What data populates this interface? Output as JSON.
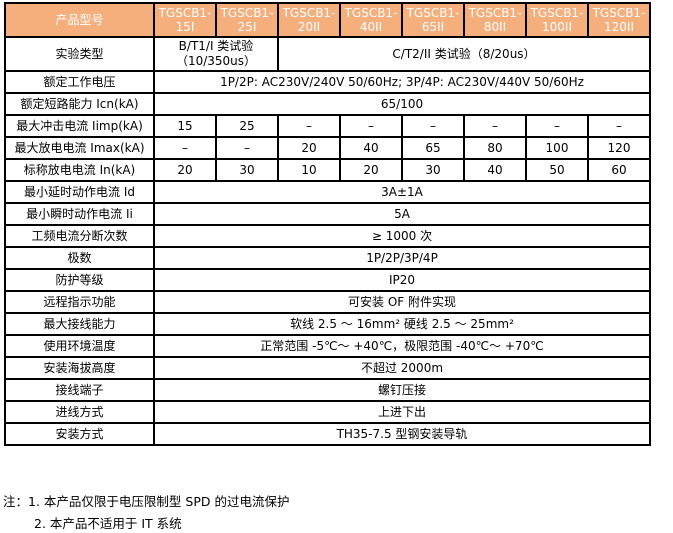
{
  "colors": {
    "header_bg": "#F5AF7D",
    "header_text": "#FFFFFF",
    "border": "#000000",
    "body_text": "#000000"
  },
  "table": {
    "header": {
      "label": "产品型号",
      "models": [
        "TGSCB1-15I",
        "TGSCB1-25I",
        "TGSCB1-20II",
        "TGSCB1-40II",
        "TGSCB1-65II",
        "TGSCB1-80II",
        "TGSCB1-100II",
        "TGSCB1-120II"
      ]
    },
    "rows": [
      {
        "label": "实验类型",
        "tall": true,
        "cells": [
          {
            "text": "B/T1/I 类试验（10/350us）",
            "span": 2
          },
          {
            "text": "C/T2/II 类试验（8/20us）",
            "span": 6
          }
        ]
      },
      {
        "label": "额定工作电压",
        "cells": [
          {
            "text": "1P/2P: AC230V/240V 50/60Hz; 3P/4P: AC230V/440V 50/60Hz",
            "span": 8
          }
        ]
      },
      {
        "label": "额定短路能力 Icn(kA)",
        "cells": [
          {
            "text": "65/100",
            "span": 8
          }
        ]
      },
      {
        "label": "最大冲击电流 Iimp(kA)",
        "cells": [
          {
            "text": "15",
            "span": 1
          },
          {
            "text": "25",
            "span": 1
          },
          {
            "text": "–",
            "span": 1
          },
          {
            "text": "–",
            "span": 1
          },
          {
            "text": "–",
            "span": 1
          },
          {
            "text": "–",
            "span": 1
          },
          {
            "text": "–",
            "span": 1
          },
          {
            "text": "–",
            "span": 1
          }
        ]
      },
      {
        "label": "最大放电电流 Imax(kA)",
        "cells": [
          {
            "text": "–",
            "span": 1
          },
          {
            "text": "–",
            "span": 1
          },
          {
            "text": "20",
            "span": 1
          },
          {
            "text": "40",
            "span": 1
          },
          {
            "text": "65",
            "span": 1
          },
          {
            "text": "80",
            "span": 1
          },
          {
            "text": "100",
            "span": 1
          },
          {
            "text": "120",
            "span": 1
          }
        ]
      },
      {
        "label": "标称放电电流 In(kA)",
        "cells": [
          {
            "text": "20",
            "span": 1
          },
          {
            "text": "30",
            "span": 1
          },
          {
            "text": "10",
            "span": 1
          },
          {
            "text": "20",
            "span": 1
          },
          {
            "text": "30",
            "span": 1
          },
          {
            "text": "40",
            "span": 1
          },
          {
            "text": "50",
            "span": 1
          },
          {
            "text": "60",
            "span": 1
          }
        ]
      },
      {
        "label": "最小延时动作电流 Id",
        "cells": [
          {
            "text": "3A±1A",
            "span": 8
          }
        ]
      },
      {
        "label": "最小瞬时动作电流 Ii",
        "cells": [
          {
            "text": "5A",
            "span": 8
          }
        ]
      },
      {
        "label": "工频电流分断次数",
        "cells": [
          {
            "text": "≥ 1000 次",
            "span": 8
          }
        ]
      },
      {
        "label": "极数",
        "cells": [
          {
            "text": "1P/2P/3P/4P",
            "span": 8
          }
        ]
      },
      {
        "label": "防护等级",
        "cells": [
          {
            "text": "IP20",
            "span": 8
          }
        ]
      },
      {
        "label": "远程指示功能",
        "cells": [
          {
            "text": "可安装 OF 附件实现",
            "span": 8
          }
        ]
      },
      {
        "label": "最大接线能力",
        "cells": [
          {
            "text": "软线 2.5 ～ 16mm²  硬线 2.5 ～ 25mm²",
            "span": 8
          }
        ]
      },
      {
        "label": "使用环境温度",
        "cells": [
          {
            "text": "正常范围 -5℃～ +40℃，极限范围 -40℃～ +70℃",
            "span": 8
          }
        ]
      },
      {
        "label": "安装海拔高度",
        "cells": [
          {
            "text": "不超过 2000m",
            "span": 8
          }
        ]
      },
      {
        "label": "接线端子",
        "cells": [
          {
            "text": "螺钉压接",
            "span": 8
          }
        ]
      },
      {
        "label": "进线方式",
        "cells": [
          {
            "text": "上进下出",
            "span": 8
          }
        ]
      },
      {
        "label": "安装方式",
        "cells": [
          {
            "text": "TH35-7.5 型钢安装导轨",
            "span": 8
          }
        ]
      }
    ]
  },
  "notes": {
    "prefix": "注：",
    "items": [
      "1. 本产品仅限于电压限制型 SPD 的过电流保护",
      "2. 本产品不适用于 IT 系统"
    ]
  }
}
